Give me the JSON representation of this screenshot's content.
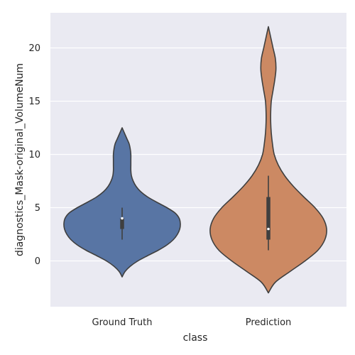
{
  "chart_data": {
    "type": "violin",
    "title": "",
    "xlabel": "class",
    "ylabel": "diagnostics_Mask-original_VolumeNum",
    "ylim": [
      -4.3,
      23.3
    ],
    "yticks": [
      0,
      5,
      10,
      15,
      20
    ],
    "grid": true,
    "legend": "none",
    "background": "#EAEAF2",
    "categories": [
      "Ground Truth",
      "Prediction"
    ],
    "series": [
      {
        "category": "Ground Truth",
        "color": "#5875A4",
        "range": [
          -1.5,
          12.5
        ],
        "density": [
          [
            -1.5,
            0.0
          ],
          [
            -1.0,
            0.05
          ],
          [
            -0.5,
            0.14
          ],
          [
            0.0,
            0.27
          ],
          [
            0.5,
            0.44
          ],
          [
            1.0,
            0.62
          ],
          [
            1.5,
            0.77
          ],
          [
            2.0,
            0.88
          ],
          [
            2.5,
            0.95
          ],
          [
            3.0,
            0.99
          ],
          [
            3.5,
            1.0
          ],
          [
            4.0,
            0.98
          ],
          [
            4.5,
            0.91
          ],
          [
            5.0,
            0.77
          ],
          [
            5.5,
            0.6
          ],
          [
            6.0,
            0.44
          ],
          [
            6.5,
            0.32
          ],
          [
            7.0,
            0.24
          ],
          [
            7.5,
            0.19
          ],
          [
            8.0,
            0.16
          ],
          [
            8.5,
            0.15
          ],
          [
            9.0,
            0.15
          ],
          [
            9.5,
            0.15
          ],
          [
            10.0,
            0.15
          ],
          [
            10.5,
            0.14
          ],
          [
            11.0,
            0.12
          ],
          [
            11.5,
            0.08
          ],
          [
            12.0,
            0.04
          ],
          [
            12.5,
            0.0
          ]
        ],
        "box": {
          "whisker_low": 2,
          "q1": 3,
          "median": 4,
          "q3": 4,
          "whisker_high": 5
        }
      },
      {
        "category": "Prediction",
        "color": "#CC8963",
        "range": [
          -3,
          22
        ],
        "density": [
          [
            -3.0,
            0.0
          ],
          [
            -2.0,
            0.12
          ],
          [
            -1.0,
            0.37
          ],
          [
            0.0,
            0.63
          ],
          [
            1.0,
            0.85
          ],
          [
            2.0,
            0.97
          ],
          [
            3.0,
            1.0
          ],
          [
            4.0,
            0.94
          ],
          [
            5.0,
            0.8
          ],
          [
            6.0,
            0.61
          ],
          [
            7.0,
            0.43
          ],
          [
            8.0,
            0.28
          ],
          [
            9.0,
            0.17
          ],
          [
            10.0,
            0.1
          ],
          [
            11.0,
            0.07
          ],
          [
            12.0,
            0.05
          ],
          [
            13.0,
            0.04
          ],
          [
            14.0,
            0.04
          ],
          [
            15.0,
            0.05
          ],
          [
            16.0,
            0.08
          ],
          [
            17.0,
            0.11
          ],
          [
            18.0,
            0.13
          ],
          [
            19.0,
            0.12
          ],
          [
            20.0,
            0.08
          ],
          [
            21.0,
            0.04
          ],
          [
            22.0,
            0.0
          ]
        ],
        "box": {
          "whisker_low": 1,
          "q1": 2,
          "median": 3,
          "q3": 6,
          "whisker_high": 8
        }
      }
    ]
  }
}
